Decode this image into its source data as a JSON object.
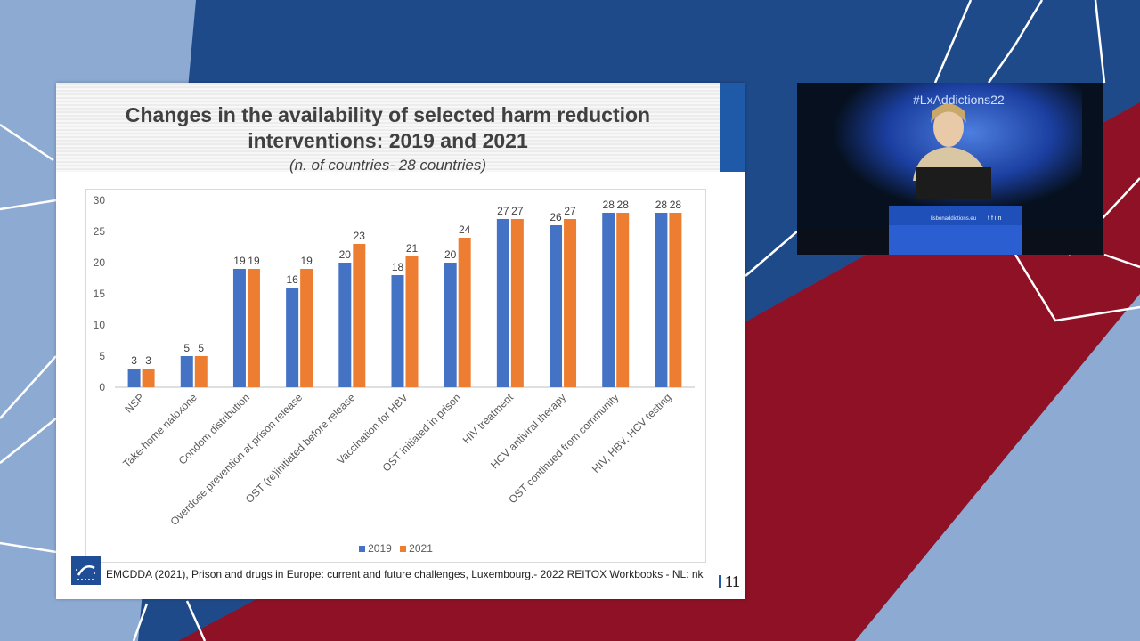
{
  "slide": {
    "title_line1": "Changes in the availability of selected harm reduction",
    "title_line2": "interventions: 2019 and 2021",
    "subtitle": "(n. of countries- 28 countries)",
    "footer": "EMCDDA (2021), Prison and drugs in Europe: current and future challenges, Luxembourg.- 2022 REITOX Workbooks - NL: nk",
    "page_number": "11",
    "accent_color": "#1f5aa8"
  },
  "chart_data": {
    "type": "bar",
    "categories": [
      "NSP",
      "Take-home naloxone",
      "Condom distribution",
      "Overdose prevention at prison release",
      "OST (re)initiated before release",
      "Vaccination for HBV",
      "OST initiated in prison",
      "HIV treatment",
      "HCV antiviral therapy",
      "OST continued from community",
      "HIV, HBV, HCV testing"
    ],
    "series": [
      {
        "name": "2019",
        "color": "#4472c4",
        "values": [
          3,
          5,
          19,
          16,
          20,
          18,
          20,
          27,
          26,
          28,
          28
        ]
      },
      {
        "name": "2021",
        "color": "#ed7d31",
        "values": [
          3,
          5,
          19,
          19,
          23,
          21,
          24,
          27,
          27,
          28,
          28
        ]
      }
    ],
    "yticks": [
      0,
      5,
      10,
      15,
      20,
      25,
      30
    ],
    "ylim": [
      0,
      30
    ],
    "grid": false,
    "legend_position": "bottom",
    "data_labels": true
  },
  "video": {
    "hashtag": "#LxAddictions22",
    "podium_url": "lisbonaddictions.eu",
    "social_icons": [
      "twitter-icon",
      "facebook-icon",
      "linkedin-icon"
    ]
  }
}
